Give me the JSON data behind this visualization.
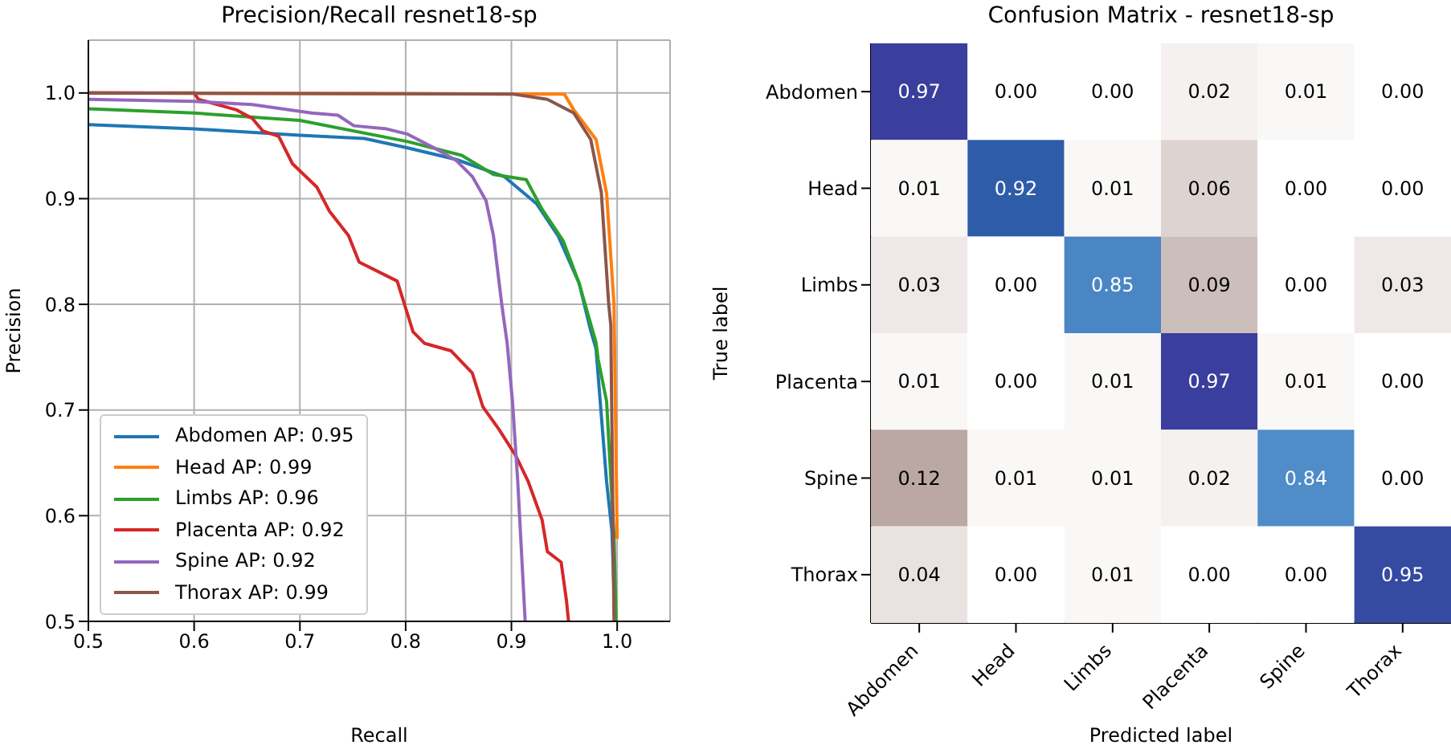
{
  "chart_data": [
    {
      "type": "line",
      "title": "Precision/Recall resnet18-sp",
      "xlabel": "Recall",
      "ylabel": "Precision",
      "xlim": [
        0.5,
        1.05
      ],
      "ylim": [
        0.5,
        1.05
      ],
      "xticks": [
        {
          "value": 0.5,
          "label": "0.5"
        },
        {
          "value": 0.6,
          "label": "0.6"
        },
        {
          "value": 0.7,
          "label": "0.7"
        },
        {
          "value": 0.8,
          "label": "0.8"
        },
        {
          "value": 0.9,
          "label": "0.9"
        },
        {
          "value": 1.0,
          "label": "1.0"
        }
      ],
      "yticks": [
        {
          "value": 0.5,
          "label": "0.5"
        },
        {
          "value": 0.6,
          "label": "0.6"
        },
        {
          "value": 0.7,
          "label": "0.7"
        },
        {
          "value": 0.8,
          "label": "0.8"
        },
        {
          "value": 0.9,
          "label": "0.9"
        },
        {
          "value": 1.0,
          "label": "1.0"
        }
      ],
      "grid": true,
      "legend": "bottom left",
      "line_style": "solid",
      "marker": "none",
      "series": [
        {
          "name": "Abdomen AP: 0.95",
          "color": "#1f77b4",
          "x": [
            0.5,
            0.6,
            0.7,
            0.761,
            0.802,
            0.848,
            0.893,
            0.924,
            0.944,
            0.964,
            0.975,
            0.98,
            0.99,
            0.995,
            0.998
          ],
          "values": [
            0.97,
            0.966,
            0.96,
            0.957,
            0.948,
            0.937,
            0.921,
            0.895,
            0.865,
            0.82,
            0.775,
            0.758,
            0.632,
            0.586,
            0.5
          ]
        },
        {
          "name": "Head AP: 0.99",
          "color": "#ff7f0e",
          "x": [
            0.5,
            0.95,
            0.959,
            0.98,
            0.99,
            0.997,
            1.0
          ],
          "values": [
            1.0,
            0.999,
            0.984,
            0.956,
            0.905,
            0.8,
            0.578
          ]
        },
        {
          "name": "Limbs AP: 0.96",
          "color": "#2ca02c",
          "x": [
            0.5,
            0.6,
            0.7,
            0.802,
            0.853,
            0.883,
            0.914,
            0.929,
            0.949,
            0.964,
            0.98,
            0.982,
            0.99,
            0.997,
            0.999
          ],
          "values": [
            0.985,
            0.981,
            0.974,
            0.954,
            0.941,
            0.923,
            0.918,
            0.89,
            0.86,
            0.82,
            0.764,
            0.748,
            0.708,
            0.581,
            0.5
          ]
        },
        {
          "name": "Placenta AP: 0.92",
          "color": "#d62728",
          "x": [
            0.5,
            0.6,
            0.604,
            0.64,
            0.655,
            0.665,
            0.68,
            0.693,
            0.716,
            0.728,
            0.746,
            0.756,
            0.792,
            0.807,
            0.818,
            0.843,
            0.863,
            0.873,
            0.888,
            0.904,
            0.916,
            0.929,
            0.934,
            0.947,
            0.952,
            0.954
          ],
          "values": [
            1.0,
            1.0,
            0.994,
            0.984,
            0.976,
            0.964,
            0.959,
            0.933,
            0.911,
            0.888,
            0.865,
            0.84,
            0.822,
            0.774,
            0.763,
            0.756,
            0.735,
            0.703,
            0.682,
            0.657,
            0.632,
            0.596,
            0.566,
            0.556,
            0.52,
            0.5
          ]
        },
        {
          "name": "Spine AP: 0.92",
          "color": "#9467bd",
          "x": [
            0.5,
            0.6,
            0.655,
            0.711,
            0.736,
            0.751,
            0.782,
            0.802,
            0.827,
            0.848,
            0.863,
            0.876,
            0.883,
            0.891,
            0.896,
            0.901,
            0.906,
            0.913
          ],
          "values": [
            0.994,
            0.992,
            0.989,
            0.981,
            0.979,
            0.969,
            0.966,
            0.961,
            0.948,
            0.936,
            0.921,
            0.898,
            0.865,
            0.799,
            0.763,
            0.708,
            0.632,
            0.5
          ]
        },
        {
          "name": "Thorax AP: 0.99",
          "color": "#8c564b",
          "x": [
            0.5,
            0.901,
            0.934,
            0.959,
            0.975,
            0.985,
            0.992,
            0.994,
            0.997
          ],
          "values": [
            1.0,
            0.999,
            0.994,
            0.981,
            0.956,
            0.906,
            0.8,
            0.78,
            0.5
          ]
        }
      ]
    },
    {
      "type": "heatmap",
      "title": "Confusion Matrix - resnet18-sp",
      "xlabel": "Predicted label",
      "ylabel": "True label",
      "categories": [
        "Abdomen",
        "Head",
        "Limbs",
        "Placenta",
        "Spine",
        "Thorax"
      ],
      "y_categories": [
        "Abdomen",
        "Head",
        "Limbs",
        "Placenta",
        "Spine",
        "Thorax"
      ],
      "cells": [
        [
          0.97,
          0.0,
          0.0,
          0.02,
          0.01,
          0.0
        ],
        [
          0.01,
          0.92,
          0.01,
          0.06,
          0.0,
          0.0
        ],
        [
          0.03,
          0.0,
          0.85,
          0.09,
          0.0,
          0.03
        ],
        [
          0.01,
          0.0,
          0.01,
          0.97,
          0.01,
          0.0
        ],
        [
          0.12,
          0.01,
          0.01,
          0.02,
          0.84,
          0.0
        ],
        [
          0.04,
          0.0,
          0.01,
          0.0,
          0.0,
          0.95
        ]
      ],
      "cell_labels": [
        [
          "0.97",
          "0.00",
          "0.00",
          "0.02",
          "0.01",
          "0.00"
        ],
        [
          "0.01",
          "0.92",
          "0.01",
          "0.06",
          "0.00",
          "0.00"
        ],
        [
          "0.03",
          "0.00",
          "0.85",
          "0.09",
          "0.00",
          "0.03"
        ],
        [
          "0.01",
          "0.00",
          "0.01",
          "0.97",
          "0.01",
          "0.00"
        ],
        [
          "0.12",
          "0.01",
          "0.01",
          "0.02",
          "0.84",
          "0.00"
        ],
        [
          "0.04",
          "0.00",
          "0.01",
          "0.00",
          "0.00",
          "0.95"
        ]
      ]
    }
  ]
}
